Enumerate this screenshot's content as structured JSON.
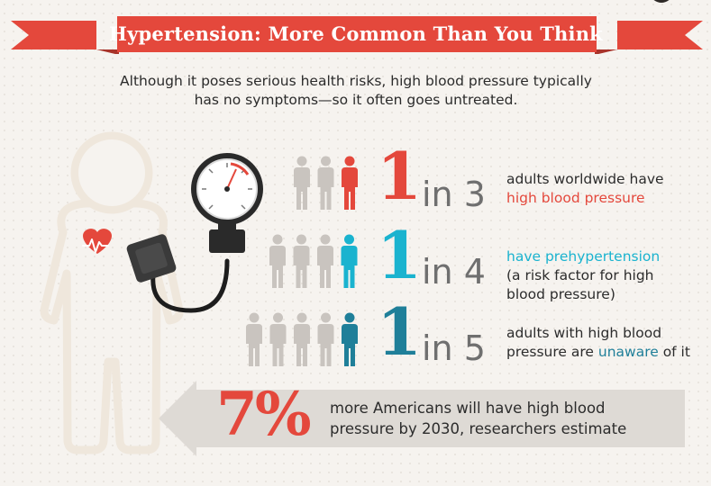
{
  "title": "Hypertension: More Common Than You Think",
  "intro": {
    "line1": "Although it poses serious health risks, high blood pressure typically",
    "line2": "has no symptoms—so it often goes untreated."
  },
  "colors": {
    "red": "#e4483c",
    "cyan": "#1ab3cf",
    "teal": "#1f7f99",
    "gray_person": "#c9c4bf",
    "body_outline": "#efe7dc"
  },
  "stats": [
    {
      "number": "1",
      "in_text": "in 3",
      "people_total": 3,
      "highlight_color": "#e4483c",
      "line1": "adults worldwide have",
      "line2": "high blood pressure",
      "line3": ""
    },
    {
      "number": "1",
      "in_text": "in 4",
      "people_total": 4,
      "highlight_color": "#1ab3cf",
      "line1": "have prehypertension",
      "line2": "(a risk factor for high",
      "line3": "blood pressure)"
    },
    {
      "number": "1",
      "in_text": "in 5",
      "people_total": 5,
      "highlight_color": "#1f7f99",
      "line1_prefix": "adults with high blood",
      "line2_prefix": "pressure are ",
      "line2_highlight": "unaware",
      "line2_suffix": " of it"
    }
  ],
  "bottom": {
    "percent": "7%",
    "line1": "more Americans will have high blood",
    "line2": "pressure by 2030, researchers estimate"
  },
  "icons": {
    "figure": "person-with-heart-icon",
    "gauge": "blood-pressure-gauge-icon",
    "heart": "heart-icon",
    "arrow": "left-arrow-icon"
  }
}
